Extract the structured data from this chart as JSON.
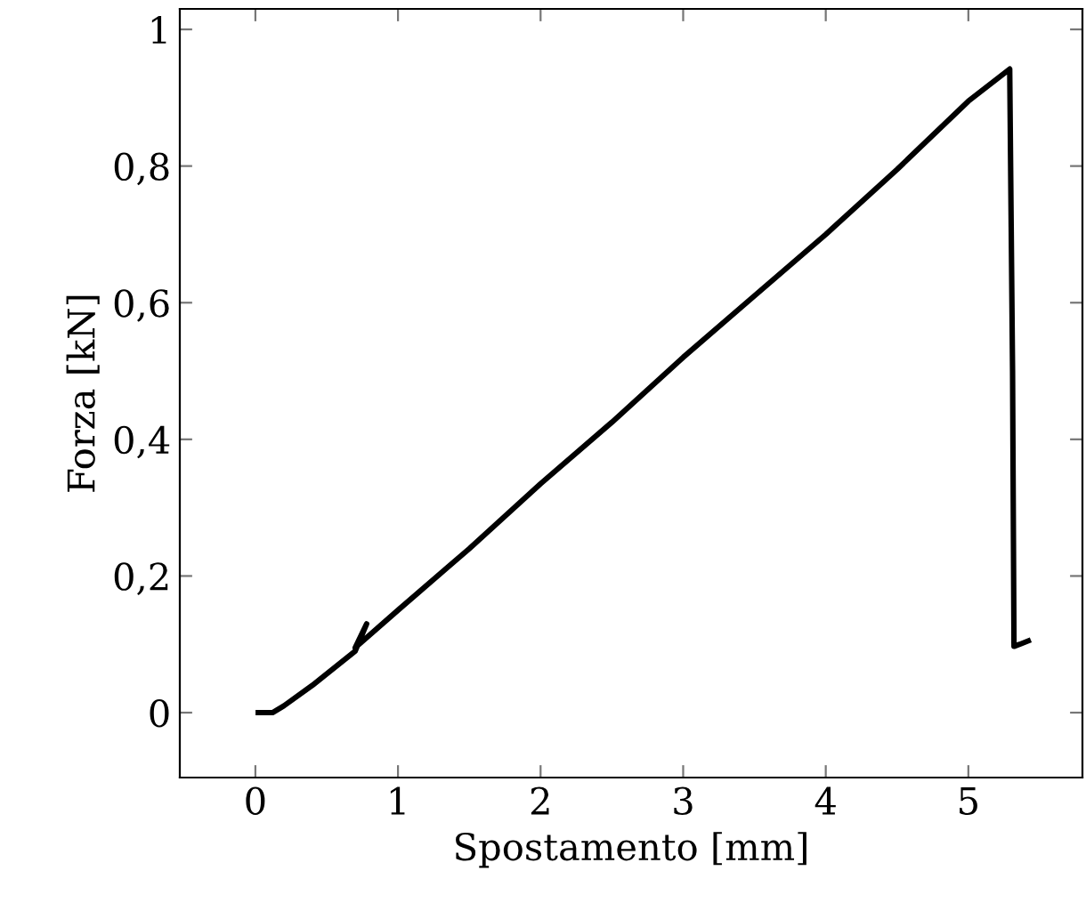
{
  "chart_data": {
    "type": "line",
    "xlabel": "Spostamento [mm]",
    "ylabel": "Forza [kN]",
    "xlim": [
      -0.53,
      5.8
    ],
    "ylim": [
      -0.095,
      1.03
    ],
    "xticks": [
      0,
      1,
      2,
      3,
      4,
      5
    ],
    "yticks": [
      0,
      {
        "value": 0.2,
        "label": "0,2"
      },
      {
        "value": 0.4,
        "label": "0,4"
      },
      {
        "value": 0.6,
        "label": "0,6"
      },
      {
        "value": 0.8,
        "label": "0,8"
      },
      1
    ],
    "grid": false,
    "legend": false,
    "series": [
      {
        "color": "#000000",
        "x": [
          0.02,
          0.12,
          0.2,
          0.4,
          0.7,
          0.78,
          0.7,
          1.0,
          1.5,
          2.0,
          2.5,
          3.0,
          3.5,
          4.0,
          4.5,
          5.0,
          5.29,
          5.31,
          5.32,
          5.36,
          5.42
        ],
        "values": [
          0,
          0,
          0.01,
          0.04,
          0.09,
          0.13,
          0.095,
          0.15,
          0.24,
          0.335,
          0.425,
          0.52,
          0.61,
          0.7,
          0.795,
          0.895,
          0.942,
          0.5,
          0.097,
          0.1,
          0.105
        ]
      }
    ]
  }
}
